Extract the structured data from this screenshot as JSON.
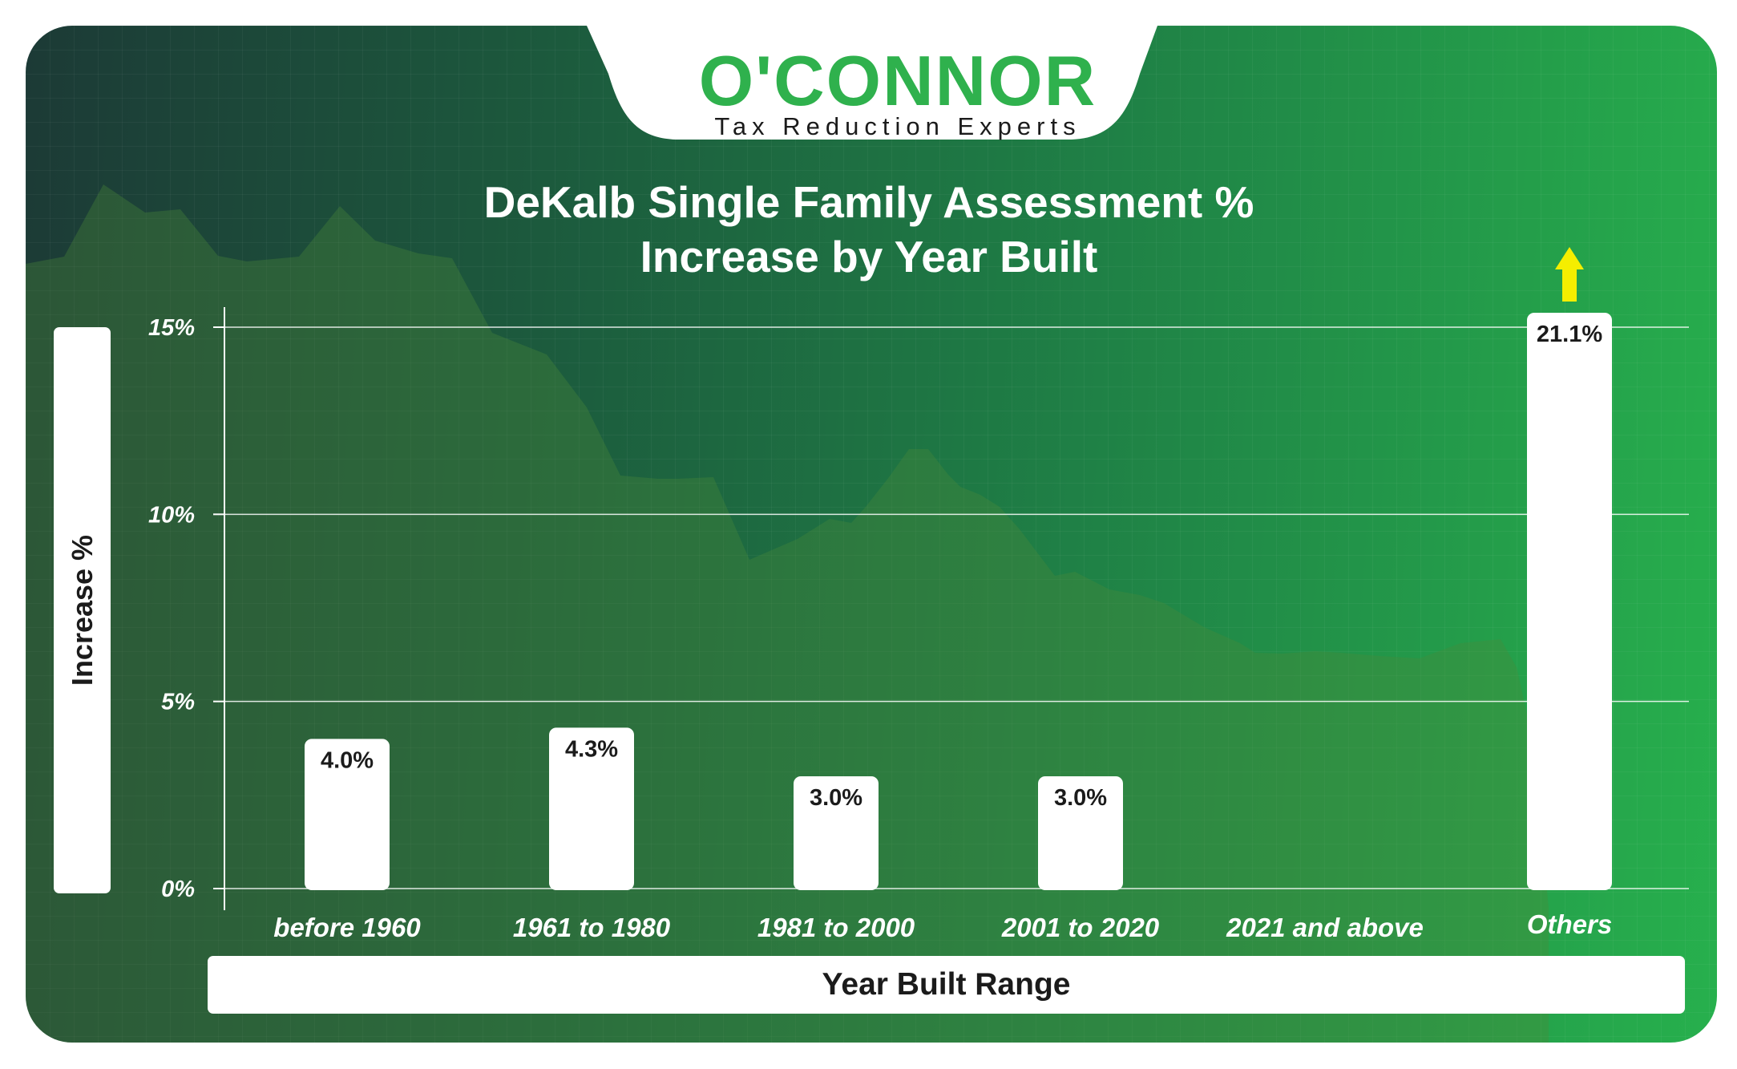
{
  "logo": {
    "brand": "O'CONNOR",
    "tagline": "Tax Reduction Experts"
  },
  "colors": {
    "brand_green": "#2fb14d",
    "bar": "#ffffff",
    "arrow": "#f5ee00",
    "text_dark": "#1b1b1b"
  },
  "chart_data": {
    "type": "bar",
    "title_line1": "DeKalb Single Family Assessment %",
    "title_line2": "Increase by Year Built",
    "xlabel": "Year Built Range",
    "ylabel": "Increase %",
    "categories": [
      "before 1960",
      "1961 to 1980",
      "1981 to 2000",
      "2001 to 2020",
      "2021 and above",
      "Others"
    ],
    "values": [
      4.0,
      4.3,
      3.0,
      3.0,
      null,
      21.1
    ],
    "value_labels": [
      "4.0%",
      "4.3%",
      "3.0%",
      "3.0%",
      "",
      "21.1%"
    ],
    "ylim": [
      0,
      15
    ],
    "yticks": [
      0,
      5,
      10,
      15
    ],
    "ytick_labels": [
      "0%",
      "5%",
      "10%",
      "15%"
    ],
    "grid": true,
    "annotations": [
      {
        "category": "Others",
        "type": "up-arrow",
        "note": "value exceeds axis maximum"
      }
    ]
  }
}
